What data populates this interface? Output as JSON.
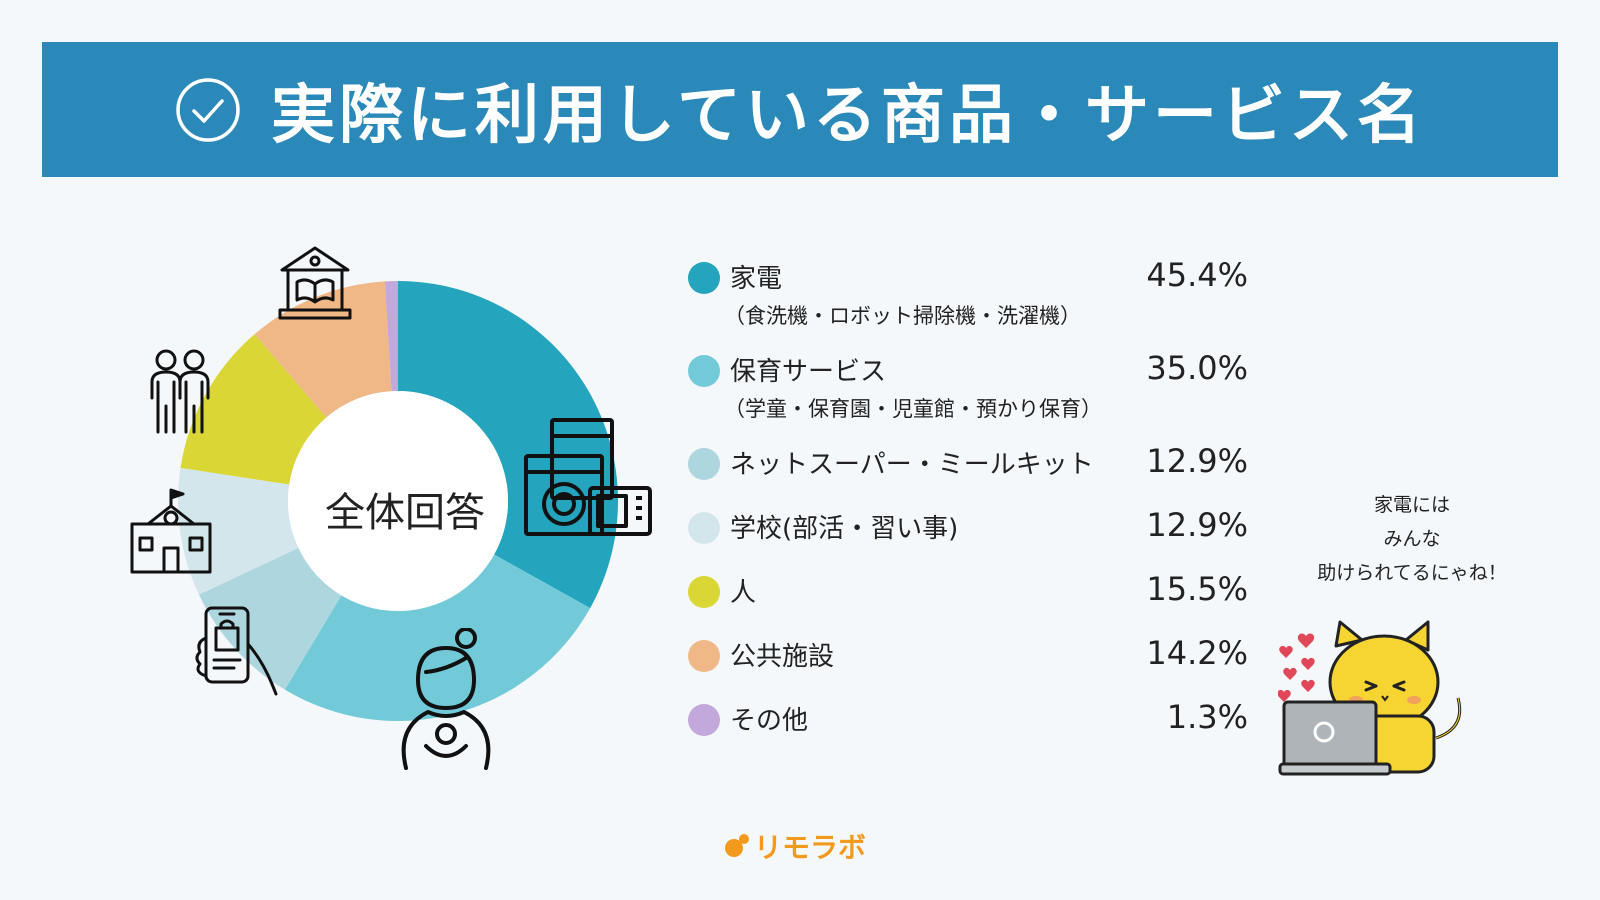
{
  "header": {
    "title": "実際に利用している商品・サービス名"
  },
  "chart_data": {
    "type": "pie",
    "center_label": "全体回答",
    "categories": [
      {
        "name": "家電",
        "sub": "（食洗機・ロボット掃除機・洗濯機）",
        "value_label": "45.4%",
        "color": "#24a4bd"
      },
      {
        "name": "保育サービス",
        "sub": "（学童・保育園・児童館・預かり保育）",
        "value_label": "35.0%",
        "color": "#72cad8"
      },
      {
        "name": "ネットスーパー・ミールキット",
        "sub": "",
        "value_label": "12.9%",
        "color": "#aed6de"
      },
      {
        "name": "学校(部活・習い事)",
        "sub": "",
        "value_label": "12.9%",
        "color": "#d3e6ec"
      },
      {
        "name": "人",
        "sub": "",
        "value_label": "15.5%",
        "color": "#d9d636"
      },
      {
        "name": "公共施設",
        "sub": "",
        "value_label": "14.2%",
        "color": "#f0b887"
      },
      {
        "name": "その他",
        "sub": "",
        "value_label": "1.3%",
        "color": "#c3a8dc"
      }
    ],
    "values": [
      45.4,
      35.0,
      12.9,
      12.9,
      15.5,
      14.2,
      1.3
    ]
  },
  "mascot": {
    "line1": "家電には",
    "line2": "みんな",
    "line3": "助けられてるにゃね！"
  },
  "footer": {
    "logo_text": "リモラボ"
  },
  "colors": {
    "banner": "#2b89b9",
    "background": "#f5f8fb",
    "logo": "#f39a1d"
  }
}
